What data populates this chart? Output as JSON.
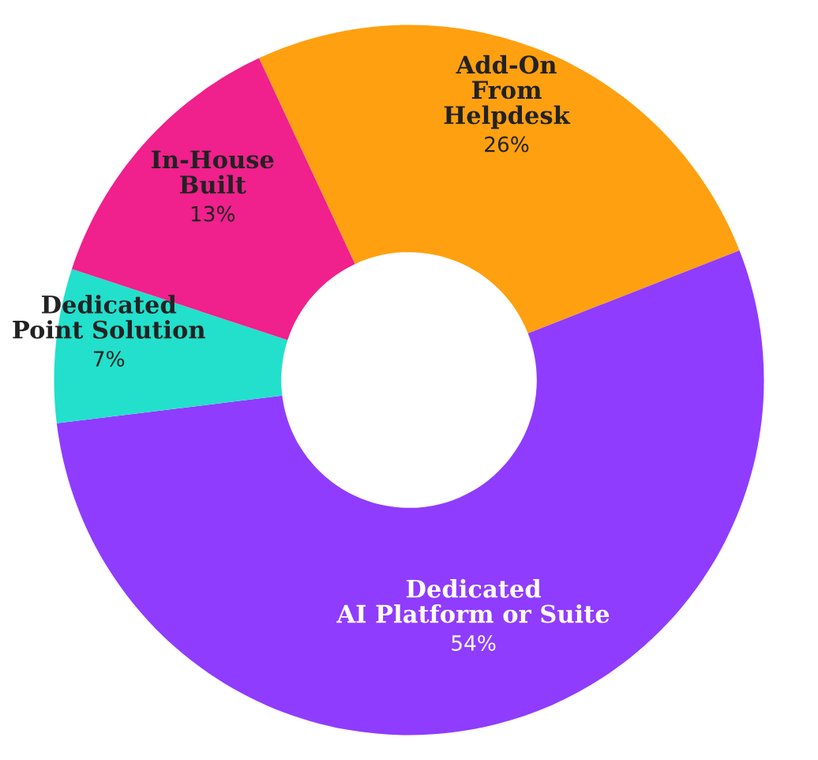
{
  "chart_data": {
    "type": "donut",
    "categories": [
      "Add-On\nFrom\nHelpdesk",
      "Dedicated\nAI Platform or Suite",
      "Dedicated\nPoint Solution",
      "In-House\nBuilt"
    ],
    "values": [
      26,
      54,
      7,
      13
    ],
    "value_labels": [
      "26%",
      "54%",
      "7%",
      "13%"
    ],
    "colors": [
      "#ffa010",
      "#8f3cff",
      "#22e0cc",
      "#f0208c"
    ]
  }
}
